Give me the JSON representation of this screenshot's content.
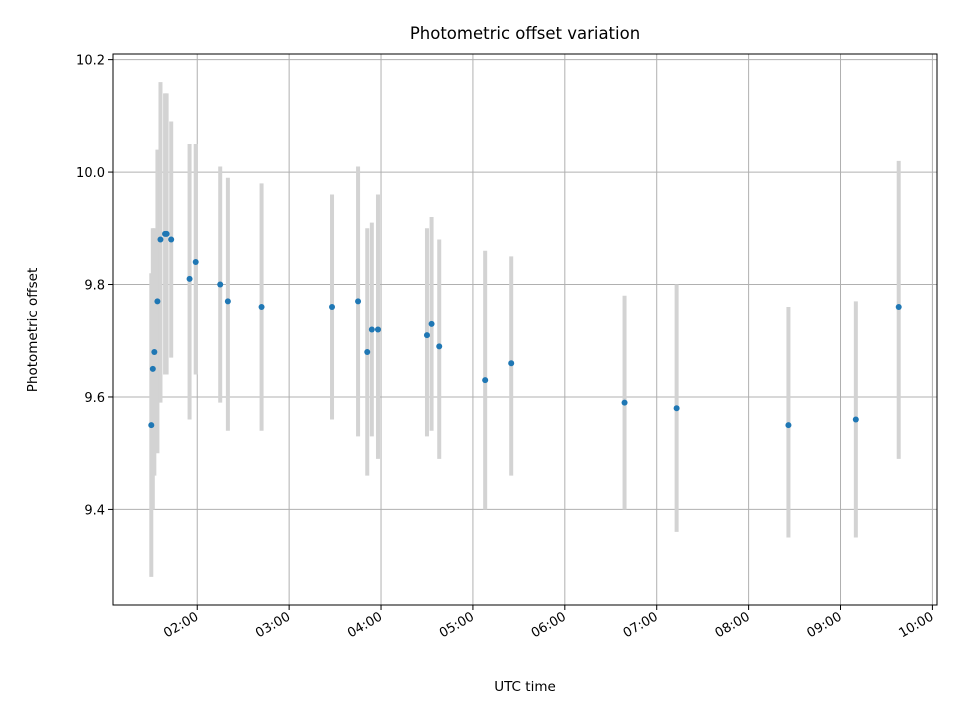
{
  "chart_data": {
    "type": "scatter",
    "title": "Photometric offset variation",
    "xlabel": "UTC time",
    "ylabel": "Photometric offset",
    "x_axis": {
      "kind": "time",
      "range": [
        "01:05",
        "10:03"
      ],
      "tick_labels": [
        "02:00",
        "03:00",
        "04:00",
        "05:00",
        "06:00",
        "07:00",
        "08:00",
        "09:00",
        "10:00"
      ]
    },
    "y_axis": {
      "range": [
        9.23,
        10.21
      ],
      "tick_values": [
        9.4,
        9.6,
        9.8,
        10.0,
        10.2
      ],
      "tick_labels": [
        "9.4",
        "9.6",
        "9.8",
        "10.0",
        "10.2"
      ]
    },
    "grid": true,
    "colors": {
      "marker": "#1f77b4",
      "errorbar": "#d3d3d3",
      "grid": "#b0b0b0"
    },
    "series": [
      {
        "points": [
          {
            "x": "01:30",
            "y": 9.55,
            "ylow": 9.28,
            "yhigh": 9.82
          },
          {
            "x": "01:31",
            "y": 9.65,
            "ylow": 9.4,
            "yhigh": 9.9
          },
          {
            "x": "01:32",
            "y": 9.68,
            "ylow": 9.46,
            "yhigh": 9.9
          },
          {
            "x": "01:34",
            "y": 9.77,
            "ylow": 9.5,
            "yhigh": 10.04
          },
          {
            "x": "01:36",
            "y": 9.88,
            "ylow": 9.59,
            "yhigh": 10.16
          },
          {
            "x": "01:39",
            "y": 9.89,
            "ylow": 9.64,
            "yhigh": 10.14
          },
          {
            "x": "01:40",
            "y": 9.89,
            "ylow": 9.64,
            "yhigh": 10.14
          },
          {
            "x": "01:43",
            "y": 9.88,
            "ylow": 9.67,
            "yhigh": 10.09
          },
          {
            "x": "01:55",
            "y": 9.81,
            "ylow": 9.56,
            "yhigh": 10.05
          },
          {
            "x": "01:59",
            "y": 9.84,
            "ylow": 9.64,
            "yhigh": 10.05
          },
          {
            "x": "02:15",
            "y": 9.8,
            "ylow": 9.59,
            "yhigh": 10.01
          },
          {
            "x": "02:20",
            "y": 9.77,
            "ylow": 9.54,
            "yhigh": 9.99
          },
          {
            "x": "02:42",
            "y": 9.76,
            "ylow": 9.54,
            "yhigh": 9.98
          },
          {
            "x": "03:28",
            "y": 9.76,
            "ylow": 9.56,
            "yhigh": 9.96
          },
          {
            "x": "03:45",
            "y": 9.77,
            "ylow": 9.53,
            "yhigh": 10.01
          },
          {
            "x": "03:51",
            "y": 9.68,
            "ylow": 9.46,
            "yhigh": 9.9
          },
          {
            "x": "03:54",
            "y": 9.72,
            "ylow": 9.53,
            "yhigh": 9.91
          },
          {
            "x": "03:58",
            "y": 9.72,
            "ylow": 9.49,
            "yhigh": 9.96
          },
          {
            "x": "04:30",
            "y": 9.71,
            "ylow": 9.53,
            "yhigh": 9.9
          },
          {
            "x": "04:33",
            "y": 9.73,
            "ylow": 9.54,
            "yhigh": 9.92
          },
          {
            "x": "04:38",
            "y": 9.69,
            "ylow": 9.49,
            "yhigh": 9.88
          },
          {
            "x": "05:08",
            "y": 9.63,
            "ylow": 9.4,
            "yhigh": 9.86
          },
          {
            "x": "05:25",
            "y": 9.66,
            "ylow": 9.46,
            "yhigh": 9.85
          },
          {
            "x": "06:39",
            "y": 9.59,
            "ylow": 9.4,
            "yhigh": 9.78
          },
          {
            "x": "07:13",
            "y": 9.58,
            "ylow": 9.36,
            "yhigh": 9.8
          },
          {
            "x": "08:26",
            "y": 9.55,
            "ylow": 9.35,
            "yhigh": 9.76
          },
          {
            "x": "09:10",
            "y": 9.56,
            "ylow": 9.35,
            "yhigh": 9.77
          },
          {
            "x": "09:38",
            "y": 9.76,
            "ylow": 9.49,
            "yhigh": 10.02
          }
        ]
      }
    ]
  }
}
